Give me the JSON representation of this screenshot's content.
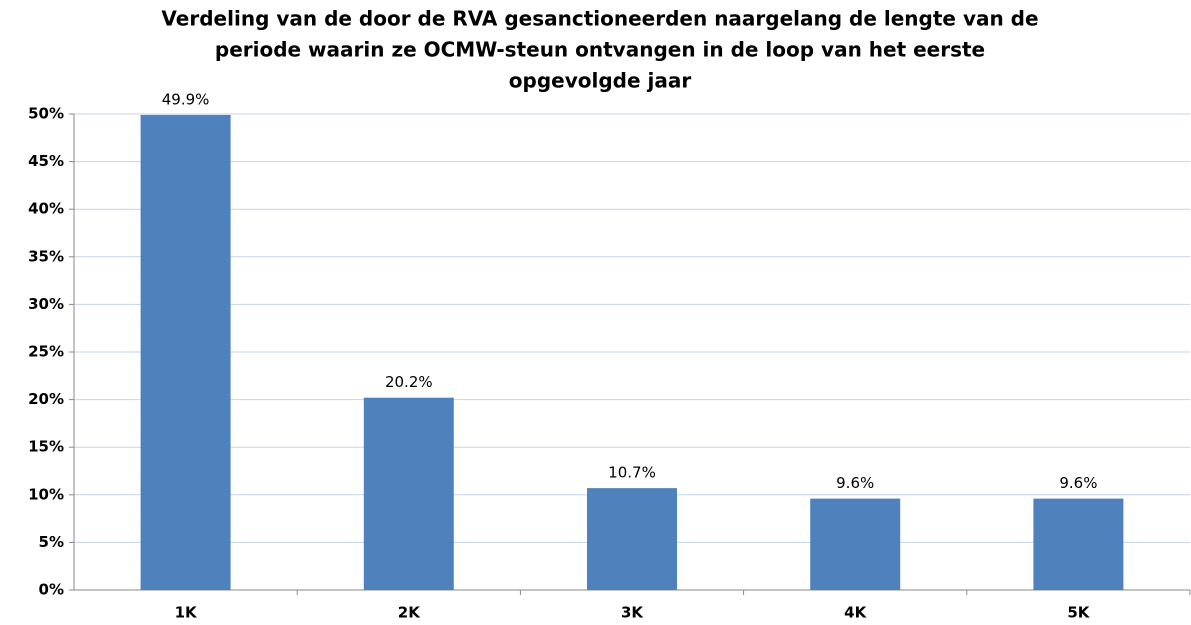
{
  "chart_data": {
    "type": "bar",
    "title": [
      "Verdeling van de door de RVA gesanctioneerden naargelang de lengte van de",
      "periode waarin ze OCMW-steun ontvangen in de loop van het eerste",
      "opgevolgde jaar"
    ],
    "categories": [
      "1K",
      "2K",
      "3K",
      "4K",
      "5K"
    ],
    "values": [
      49.9,
      20.2,
      10.7,
      9.6,
      9.6
    ],
    "value_labels": [
      "49.9%",
      "20.2%",
      "10.7%",
      "9.6%",
      "9.6%"
    ],
    "color": "#4f81bd",
    "ylim": [
      0,
      50
    ],
    "yticks": [
      {
        "value": 0,
        "label": "0%"
      },
      {
        "value": 5,
        "label": "5%"
      },
      {
        "value": 10,
        "label": "10%"
      },
      {
        "value": 15,
        "label": "15%"
      },
      {
        "value": 20,
        "label": "20%"
      },
      {
        "value": 25,
        "label": "25%"
      },
      {
        "value": 30,
        "label": "30%"
      },
      {
        "value": 35,
        "label": "35%"
      },
      {
        "value": 40,
        "label": "40%"
      },
      {
        "value": 45,
        "label": "45%"
      },
      {
        "value": 50,
        "label": "50%"
      }
    ],
    "grid": true
  }
}
